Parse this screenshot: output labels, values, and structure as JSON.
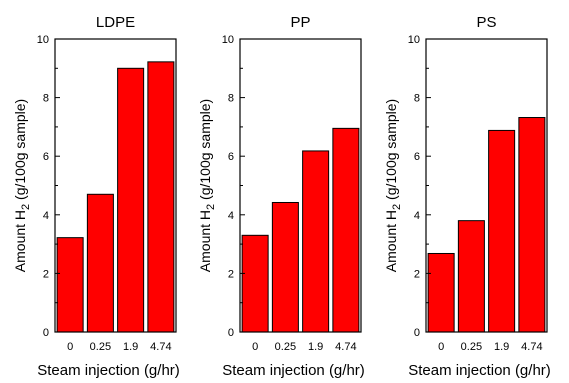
{
  "bar_color": "#ff0000",
  "chart_data": [
    {
      "type": "bar",
      "title": "LDPE",
      "categories": [
        "0",
        "0.25",
        "1.9",
        "4.74"
      ],
      "values": [
        3.22,
        4.7,
        9.0,
        9.22
      ],
      "xlabel": "Steam injection (g/hr)",
      "ylabel": {
        "main": "Amount H",
        "sub": "2",
        "rest": " (g/100g sample)"
      },
      "ylim": [
        0,
        10
      ],
      "yticks": [
        "0",
        "2",
        "4",
        "6",
        "8",
        "10"
      ]
    },
    {
      "type": "bar",
      "title": "PP",
      "categories": [
        "0",
        "0.25",
        "1.9",
        "4.74"
      ],
      "values": [
        3.3,
        4.42,
        6.18,
        6.95
      ],
      "xlabel": "Steam injection (g/hr)",
      "ylabel": {
        "main": "Amount H",
        "sub": "2",
        "rest": " (g/100g sample)"
      },
      "ylim": [
        0,
        10
      ],
      "yticks": [
        "0",
        "2",
        "4",
        "6",
        "8",
        "10"
      ]
    },
    {
      "type": "bar",
      "title": "PS",
      "categories": [
        "0",
        "0.25",
        "1.9",
        "4.74"
      ],
      "values": [
        2.68,
        3.8,
        6.88,
        7.32
      ],
      "xlabel": "Steam injection (g/hr)",
      "ylabel": {
        "main": "Amount H",
        "sub": "2",
        "rest": " (g/100g sample)"
      },
      "ylim": [
        0,
        10
      ],
      "yticks": [
        "0",
        "2",
        "4",
        "6",
        "8",
        "10"
      ]
    }
  ]
}
